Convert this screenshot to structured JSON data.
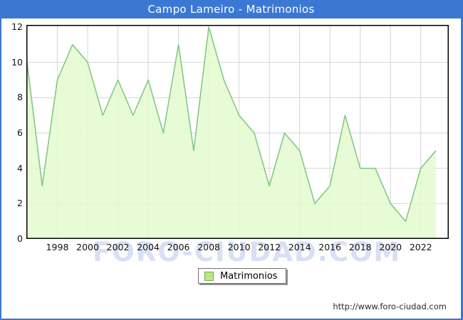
{
  "window": {
    "title": "Campo Lameiro - Matrimonios"
  },
  "chart_data": {
    "type": "area",
    "title": "Campo Lameiro - Matrimonios",
    "x": [
      1996,
      1997,
      1998,
      1999,
      2000,
      2001,
      2002,
      2003,
      2004,
      2005,
      2006,
      2007,
      2008,
      2009,
      2010,
      2011,
      2012,
      2013,
      2014,
      2015,
      2016,
      2017,
      2018,
      2019,
      2020,
      2021,
      2022,
      2023
    ],
    "series": [
      {
        "name": "Matrimonios",
        "values": [
          10,
          3,
          9,
          11,
          10,
          7,
          9,
          7,
          9,
          6,
          11,
          5,
          12,
          9,
          7,
          6,
          3,
          6,
          5,
          2,
          3,
          7,
          4,
          4,
          2,
          1,
          4,
          5
        ]
      }
    ],
    "xticks": [
      1998,
      2000,
      2002,
      2004,
      2006,
      2008,
      2010,
      2012,
      2014,
      2016,
      2018,
      2020,
      2022
    ],
    "yticks": [
      0,
      2,
      4,
      6,
      8,
      10,
      12
    ],
    "ylim": [
      0,
      12
    ],
    "grid": true,
    "legend_position": "bottom"
  },
  "legend": {
    "label": "Matrimonios"
  },
  "watermark": {
    "text": "FORO-CIUDAD.COM"
  },
  "footer": {
    "url": "http://www.foro-ciudad.com"
  },
  "colors": {
    "frame_blue": "#3b78d4",
    "title_text": "#ffffff",
    "line_green": "#85c985",
    "fill_green": "#e4fad0",
    "grid_gray": "#d4d4d4",
    "plot_border": "#000000",
    "swatch_fill": "#b9e87e",
    "swatch_border": "#74aa50"
  }
}
